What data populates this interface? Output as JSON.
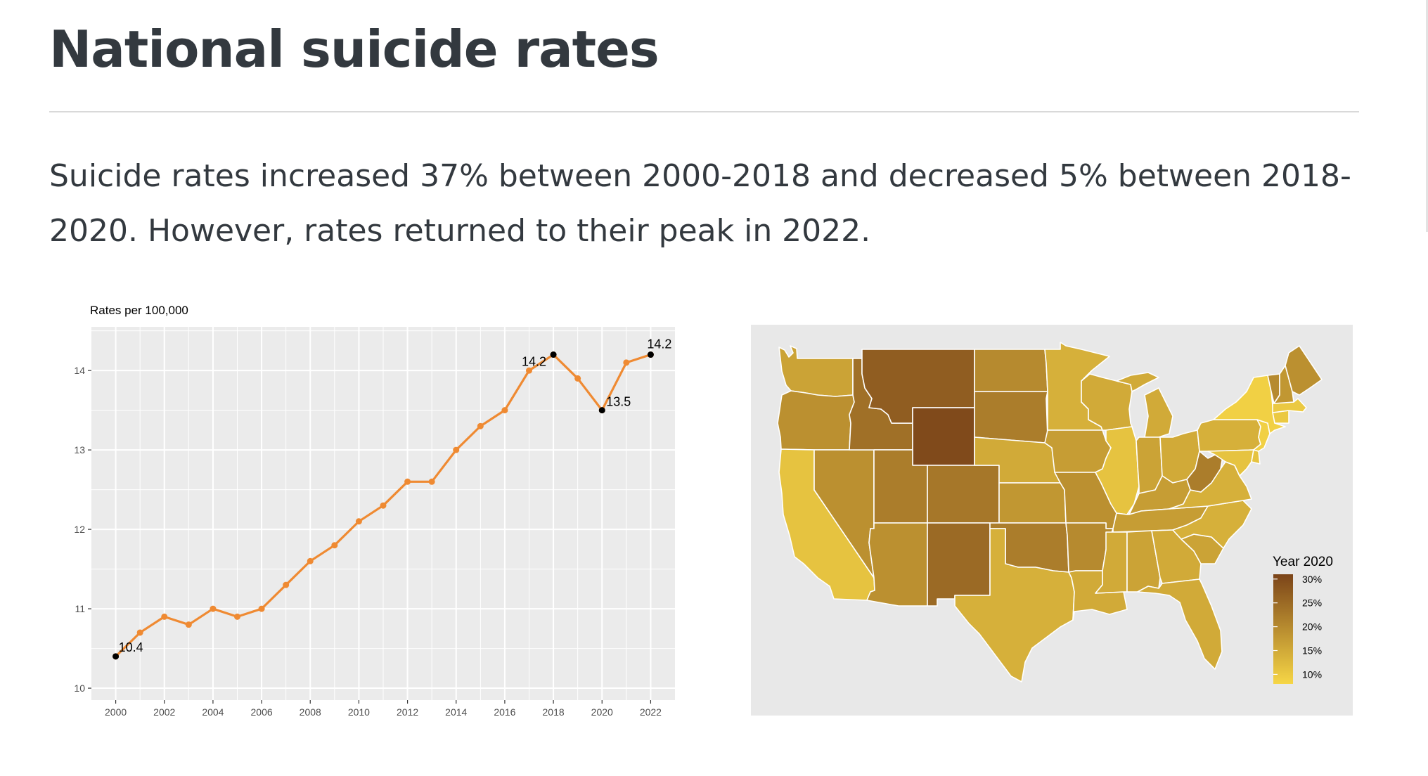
{
  "page": {
    "title": "National suicide rates",
    "subtitle": "Suicide rates increased 37% between 2000-2018 and decreased 5% between 2018-2020. However, rates returned to their peak in 2022."
  },
  "chart_data": [
    {
      "type": "line",
      "title": "Rates per 100,000",
      "xlabel": "",
      "ylabel": "Rates per 100,000",
      "x": [
        2000,
        2001,
        2002,
        2003,
        2004,
        2005,
        2006,
        2007,
        2008,
        2009,
        2010,
        2011,
        2012,
        2013,
        2014,
        2015,
        2016,
        2017,
        2018,
        2019,
        2020,
        2021,
        2022
      ],
      "values": [
        10.4,
        10.7,
        10.9,
        10.8,
        11.0,
        10.9,
        11.0,
        11.3,
        11.6,
        11.8,
        12.1,
        12.3,
        12.6,
        12.6,
        13.0,
        13.3,
        13.5,
        14.0,
        14.2,
        13.9,
        13.5,
        14.1,
        14.2
      ],
      "xlim": [
        1999,
        2023
      ],
      "ylim": [
        9.85,
        14.55
      ],
      "xticks": [
        2000,
        2002,
        2004,
        2006,
        2008,
        2010,
        2012,
        2014,
        2016,
        2018,
        2020,
        2022
      ],
      "xtick_labels": [
        "2000",
        "2002",
        "2004",
        "2006",
        "2008",
        "2010",
        "2012",
        "2014",
        "2016",
        "2018",
        "2020",
        "2022"
      ],
      "yticks": [
        10,
        11,
        12,
        13,
        14
      ],
      "ytick_labels": [
        "10",
        "11",
        "12",
        "13",
        "14"
      ],
      "line_color": "#EF8A32",
      "highlight_color": "#000000",
      "annotations": [
        {
          "x": 2000,
          "y": 10.4,
          "label": "10.4"
        },
        {
          "x": 2018,
          "y": 14.2,
          "label": "14.2"
        },
        {
          "x": 2020,
          "y": 13.5,
          "label": "13.5"
        },
        {
          "x": 2022,
          "y": 14.2,
          "label": "14.2"
        }
      ],
      "grid": true
    },
    {
      "type": "choropleth",
      "title": "",
      "legend_title": "Year 2020",
      "legend_labels": [
        "30%",
        "25%",
        "20%",
        "15%",
        "10%"
      ],
      "legend_values": [
        30,
        25,
        20,
        15,
        10
      ],
      "color_low": "#F6D646",
      "color_high": "#7B4419",
      "value_range": [
        8,
        31
      ],
      "legend_position": "right",
      "regions": [
        {
          "name": "Washington",
          "value": 16
        },
        {
          "name": "Oregon",
          "value": 19
        },
        {
          "name": "California",
          "value": 11
        },
        {
          "name": "Idaho",
          "value": 24
        },
        {
          "name": "Nevada",
          "value": 19
        },
        {
          "name": "Utah",
          "value": 22
        },
        {
          "name": "Arizona",
          "value": 19
        },
        {
          "name": "Montana",
          "value": 27
        },
        {
          "name": "Wyoming",
          "value": 30
        },
        {
          "name": "Colorado",
          "value": 23
        },
        {
          "name": "New Mexico",
          "value": 25
        },
        {
          "name": "North Dakota",
          "value": 20
        },
        {
          "name": "South Dakota",
          "value": 22
        },
        {
          "name": "Nebraska",
          "value": 15
        },
        {
          "name": "Kansas",
          "value": 18
        },
        {
          "name": "Oklahoma",
          "value": 22
        },
        {
          "name": "Texas",
          "value": 14
        },
        {
          "name": "Minnesota",
          "value": 14
        },
        {
          "name": "Iowa",
          "value": 17
        },
        {
          "name": "Missouri",
          "value": 19
        },
        {
          "name": "Arkansas",
          "value": 20
        },
        {
          "name": "Louisiana",
          "value": 15
        },
        {
          "name": "Wisconsin",
          "value": 15
        },
        {
          "name": "Illinois",
          "value": 11
        },
        {
          "name": "Michigan",
          "value": 15
        },
        {
          "name": "Indiana",
          "value": 16
        },
        {
          "name": "Ohio",
          "value": 15
        },
        {
          "name": "Kentucky",
          "value": 17
        },
        {
          "name": "Tennessee",
          "value": 17
        },
        {
          "name": "Mississippi",
          "value": 15
        },
        {
          "name": "Alabama",
          "value": 16
        },
        {
          "name": "Georgia",
          "value": 15
        },
        {
          "name": "Florida",
          "value": 15
        },
        {
          "name": "South Carolina",
          "value": 16
        },
        {
          "name": "North Carolina",
          "value": 14
        },
        {
          "name": "Virginia",
          "value": 14
        },
        {
          "name": "West Virginia",
          "value": 22
        },
        {
          "name": "Pennsylvania",
          "value": 14
        },
        {
          "name": "New York",
          "value": 9
        },
        {
          "name": "Vermont",
          "value": 20
        },
        {
          "name": "New Hampshire",
          "value": 18
        },
        {
          "name": "Maine",
          "value": 19
        },
        {
          "name": "Massachusetts",
          "value": 10
        },
        {
          "name": "Connecticut",
          "value": 10
        },
        {
          "name": "New Jersey",
          "value": 9
        },
        {
          "name": "Maryland",
          "value": 11
        },
        {
          "name": "Delaware",
          "value": 11
        }
      ]
    }
  ]
}
